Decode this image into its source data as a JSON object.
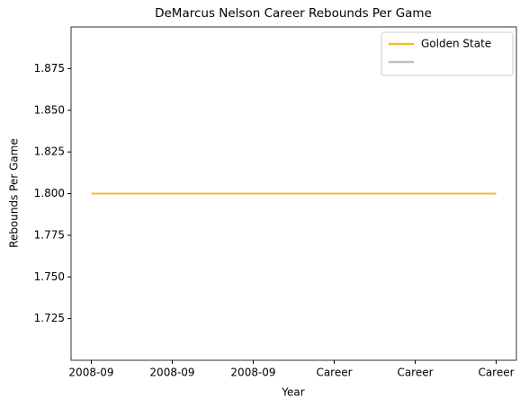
{
  "chart_data": {
    "type": "line",
    "title": "DeMarcus Nelson Career Rebounds Per Game",
    "x_label": "Year",
    "y_label": "Rebounds Per Game",
    "categories": [
      "2008-09",
      "2008-09",
      "2008-09",
      "Career",
      "Career",
      "Career"
    ],
    "series": [
      {
        "name": "Golden State",
        "color": "#fbb735",
        "values": [
          1.8,
          1.8,
          1.8,
          1.8,
          1.8,
          1.8
        ]
      },
      {
        "color": "#bfbfbf",
        "values": [
          1.8,
          1.8,
          1.8,
          1.8,
          1.8,
          1.8
        ]
      }
    ],
    "ylim": [
      1.7,
      1.9
    ],
    "yticks": [
      1.725,
      {
        "value": 1.75,
        "label": "1.750"
      },
      1.775,
      {
        "value": 1.8,
        "label": "1.800"
      },
      1.825,
      {
        "value": 1.85,
        "label": "1.850"
      },
      1.875
    ],
    "grid": false,
    "legend": "upper right"
  }
}
